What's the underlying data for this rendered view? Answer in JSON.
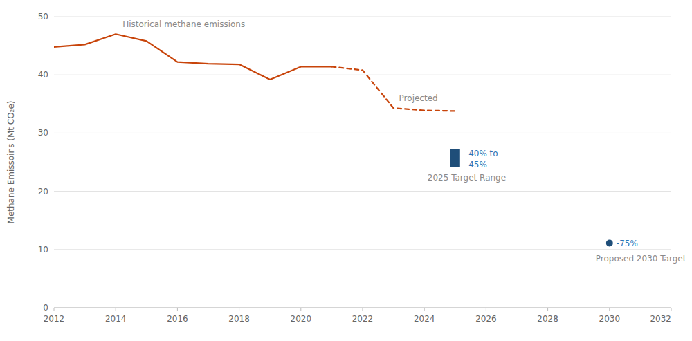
{
  "chart_data": {
    "type": "line",
    "y_label": "Methane Emissoins (Mt CO₂e)",
    "xlim": [
      2012,
      2032
    ],
    "xticks": [
      2012,
      2014,
      2016,
      2018,
      2020,
      2022,
      2024,
      2026,
      2028,
      2030,
      2032
    ],
    "ylim": [
      0,
      50
    ],
    "yticks": [
      0,
      10,
      20,
      30,
      40,
      50
    ],
    "grid": true,
    "series": [
      {
        "type": "line",
        "line_style": "solid",
        "color": "#C8440A",
        "x": [
          2012,
          2013,
          2014,
          2015,
          2016,
          2017,
          2018,
          2019,
          2020,
          2021
        ],
        "values": [
          44.8,
          45.2,
          47.0,
          45.8,
          42.2,
          41.9,
          41.8,
          39.2,
          41.4,
          41.4
        ],
        "annotation": "Historical methane emissions"
      },
      {
        "type": "line",
        "line_style": "dashed",
        "color": "#C8440A",
        "x": [
          2021,
          2022,
          2023,
          2024,
          2025
        ],
        "values": [
          41.4,
          40.8,
          34.3,
          33.9,
          33.8
        ],
        "annotation": "Projected"
      },
      {
        "type": "range_bar",
        "color": "#1F4E79",
        "x": [
          2025
        ],
        "low": [
          24.2
        ],
        "high": [
          27.2
        ],
        "annotation": [
          "-40% to",
          "-45%"
        ],
        "sublabel": "2025 Target Range"
      },
      {
        "type": "scatter",
        "marker": "circle",
        "color": "#1F4E79",
        "x": [
          2030
        ],
        "values": [
          11.1
        ],
        "annotation": "-75%",
        "sublabel": "Proposed 2030 Target"
      }
    ]
  }
}
